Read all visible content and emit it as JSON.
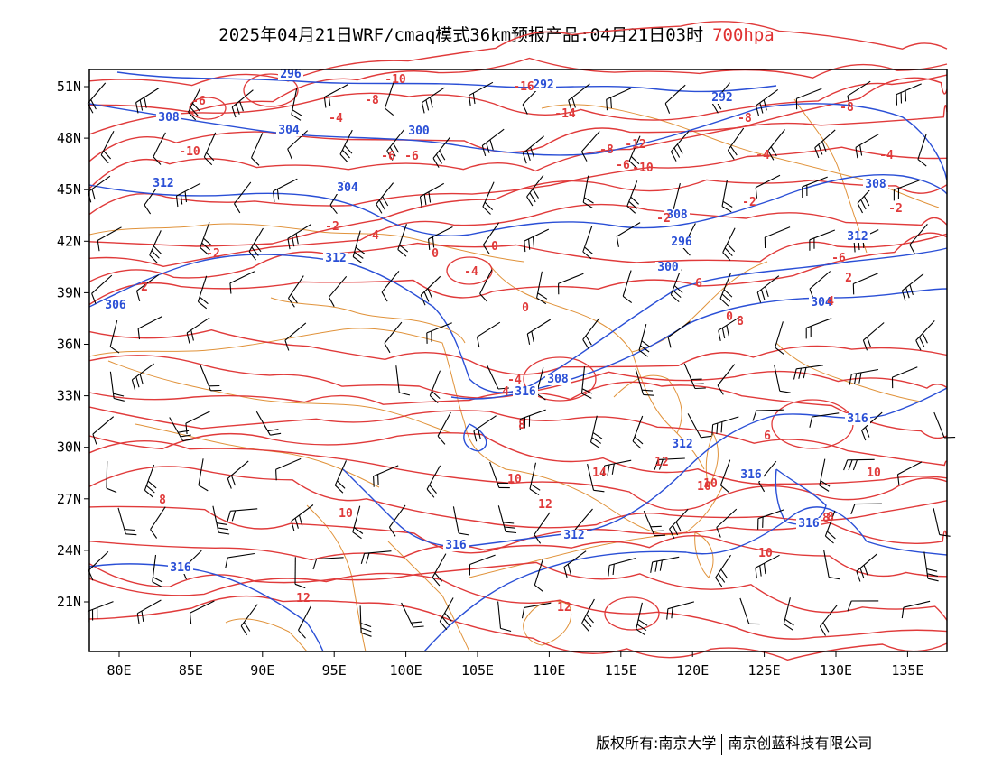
{
  "title": {
    "main": "2025年04月21日WRF/cmaq模式36km预报产品:04月21日03时",
    "level": "700hpa"
  },
  "footer": {
    "left": "版权所有:南京大学",
    "right": "南京创蓝科技有限公司"
  },
  "map": {
    "lon_ticks": [
      "80E",
      "85E",
      "90E",
      "95E",
      "100E",
      "105E",
      "110E",
      "115E",
      "120E",
      "125E",
      "130E",
      "135E"
    ],
    "lat_ticks": [
      "51N",
      "48N",
      "45N",
      "42N",
      "39N",
      "36N",
      "33N",
      "30N",
      "27N",
      "24N",
      "21N"
    ],
    "colors": {
      "height_contour": "#2a4fd6",
      "temp_contour": "#e03a3a",
      "boundary": "#e0923a",
      "wind_barb": "#000000"
    },
    "height_labels": [
      "296",
      "292",
      "292",
      "308",
      "304",
      "300",
      "304",
      "312",
      "308",
      "296",
      "300",
      "304",
      "308",
      "312",
      "312",
      "306",
      "308",
      "316",
      "312",
      "316",
      "316",
      "316",
      "312",
      "316",
      "316"
    ],
    "temp_labels": [
      "-10",
      "-16",
      "-14",
      "-8",
      "-6",
      "-8",
      "-4",
      "-10",
      "-12",
      "-8",
      "-10",
      "-6",
      "-6",
      "-6",
      "-4",
      "-4",
      "-8",
      "-2",
      "-2",
      "-2",
      "-4",
      "-2",
      "0",
      "0",
      "-4",
      "-6",
      "-2",
      "0",
      "2",
      "-4",
      "4",
      "2",
      "6",
      "0",
      "4",
      "8",
      "6",
      "8",
      "10",
      "12",
      "14",
      "12",
      "10",
      "12",
      "8",
      "10",
      "10",
      "8",
      "10",
      "12",
      "10",
      "8"
    ],
    "legend_note": ""
  }
}
